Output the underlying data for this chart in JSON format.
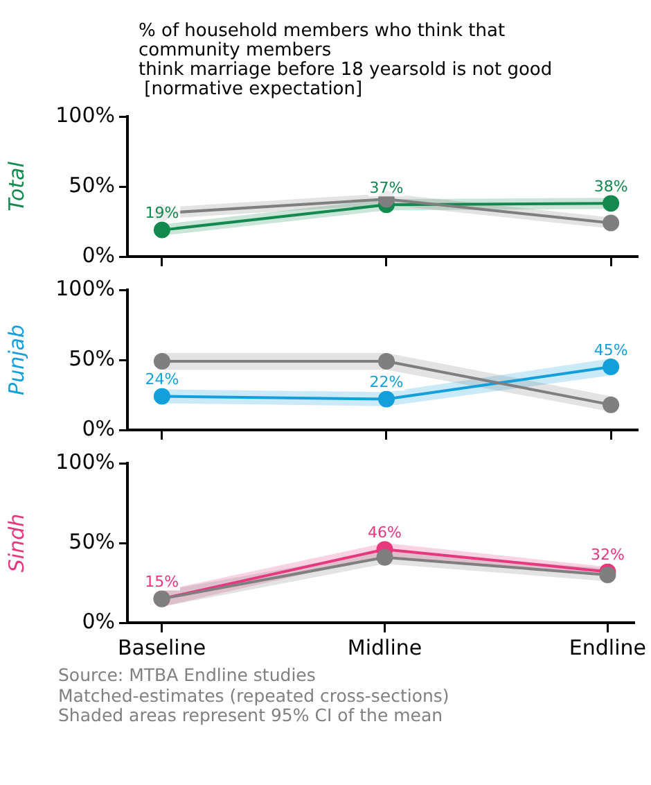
{
  "chart_data": [
    {
      "type": "line",
      "title": "% of household members who think that\ncommunity members\nthink marriage before 18 yearsold is not good\n [normative expectation]",
      "ylabel": "Total",
      "categories": [
        null,
        null,
        null
      ],
      "ylim": [
        0,
        100
      ],
      "yticks": [
        {
          "value": 0,
          "label": "0%"
        },
        {
          "value": 50,
          "label": "50%"
        },
        {
          "value": 100,
          "label": "100%"
        }
      ],
      "marker": "circle",
      "tick_labels": "y",
      "series": [
        {
          "color": "#13894f",
          "values": [
            19,
            37,
            38
          ],
          "lower": [
            15,
            33,
            34
          ],
          "upper": [
            23,
            41,
            42
          ],
          "value_labels": [
            "19%",
            "37%",
            "38%"
          ]
        },
        {
          "color": "#7f7f7f",
          "values": [
            31,
            41,
            24
          ],
          "lower": [
            27,
            37,
            20
          ],
          "upper": [
            35,
            45,
            28
          ]
        }
      ]
    },
    {
      "type": "line",
      "ylabel": "Punjab",
      "categories": [
        null,
        null,
        null
      ],
      "ylim": [
        0,
        100
      ],
      "yticks": [
        {
          "value": 0,
          "label": "0%"
        },
        {
          "value": 50,
          "label": "50%"
        },
        {
          "value": 100,
          "label": "100%"
        }
      ],
      "marker": "circle",
      "tick_labels": "y",
      "series": [
        {
          "color": "#139fda",
          "values": [
            24,
            22,
            45
          ],
          "lower": [
            19,
            17,
            39
          ],
          "upper": [
            29,
            27,
            51
          ],
          "value_labels": [
            "24%",
            "22%",
            "45%"
          ]
        },
        {
          "color": "#7f7f7f",
          "values": [
            49,
            49,
            18
          ],
          "lower": [
            43,
            43,
            13
          ],
          "upper": [
            55,
            55,
            24
          ]
        }
      ]
    },
    {
      "type": "line",
      "ylabel": "Sindh",
      "categories": [
        "Baseline",
        "Midline",
        "Endline"
      ],
      "ylim": [
        0,
        100
      ],
      "yticks": [
        {
          "value": 0,
          "label": "0%"
        },
        {
          "value": 50,
          "label": "50%"
        },
        {
          "value": 100,
          "label": "100%"
        }
      ],
      "marker": "circle",
      "annotations": [
        "Source: MTBA Endline studies",
        "Matched-estimates (repeated cross-sections)",
        "Shaded areas represent 95% CI of the mean"
      ],
      "series": [
        {
          "color": "#e5387f",
          "values": [
            15,
            46,
            32
          ],
          "lower": [
            10,
            42,
            29
          ],
          "upper": [
            20,
            50,
            35
          ],
          "value_labels": [
            "15%",
            "46%",
            "32%"
          ]
        },
        {
          "color": "#7f7f7f",
          "values": [
            15,
            41,
            30
          ],
          "lower": [
            10,
            37,
            26
          ],
          "upper": [
            20,
            45,
            34
          ]
        }
      ]
    }
  ]
}
